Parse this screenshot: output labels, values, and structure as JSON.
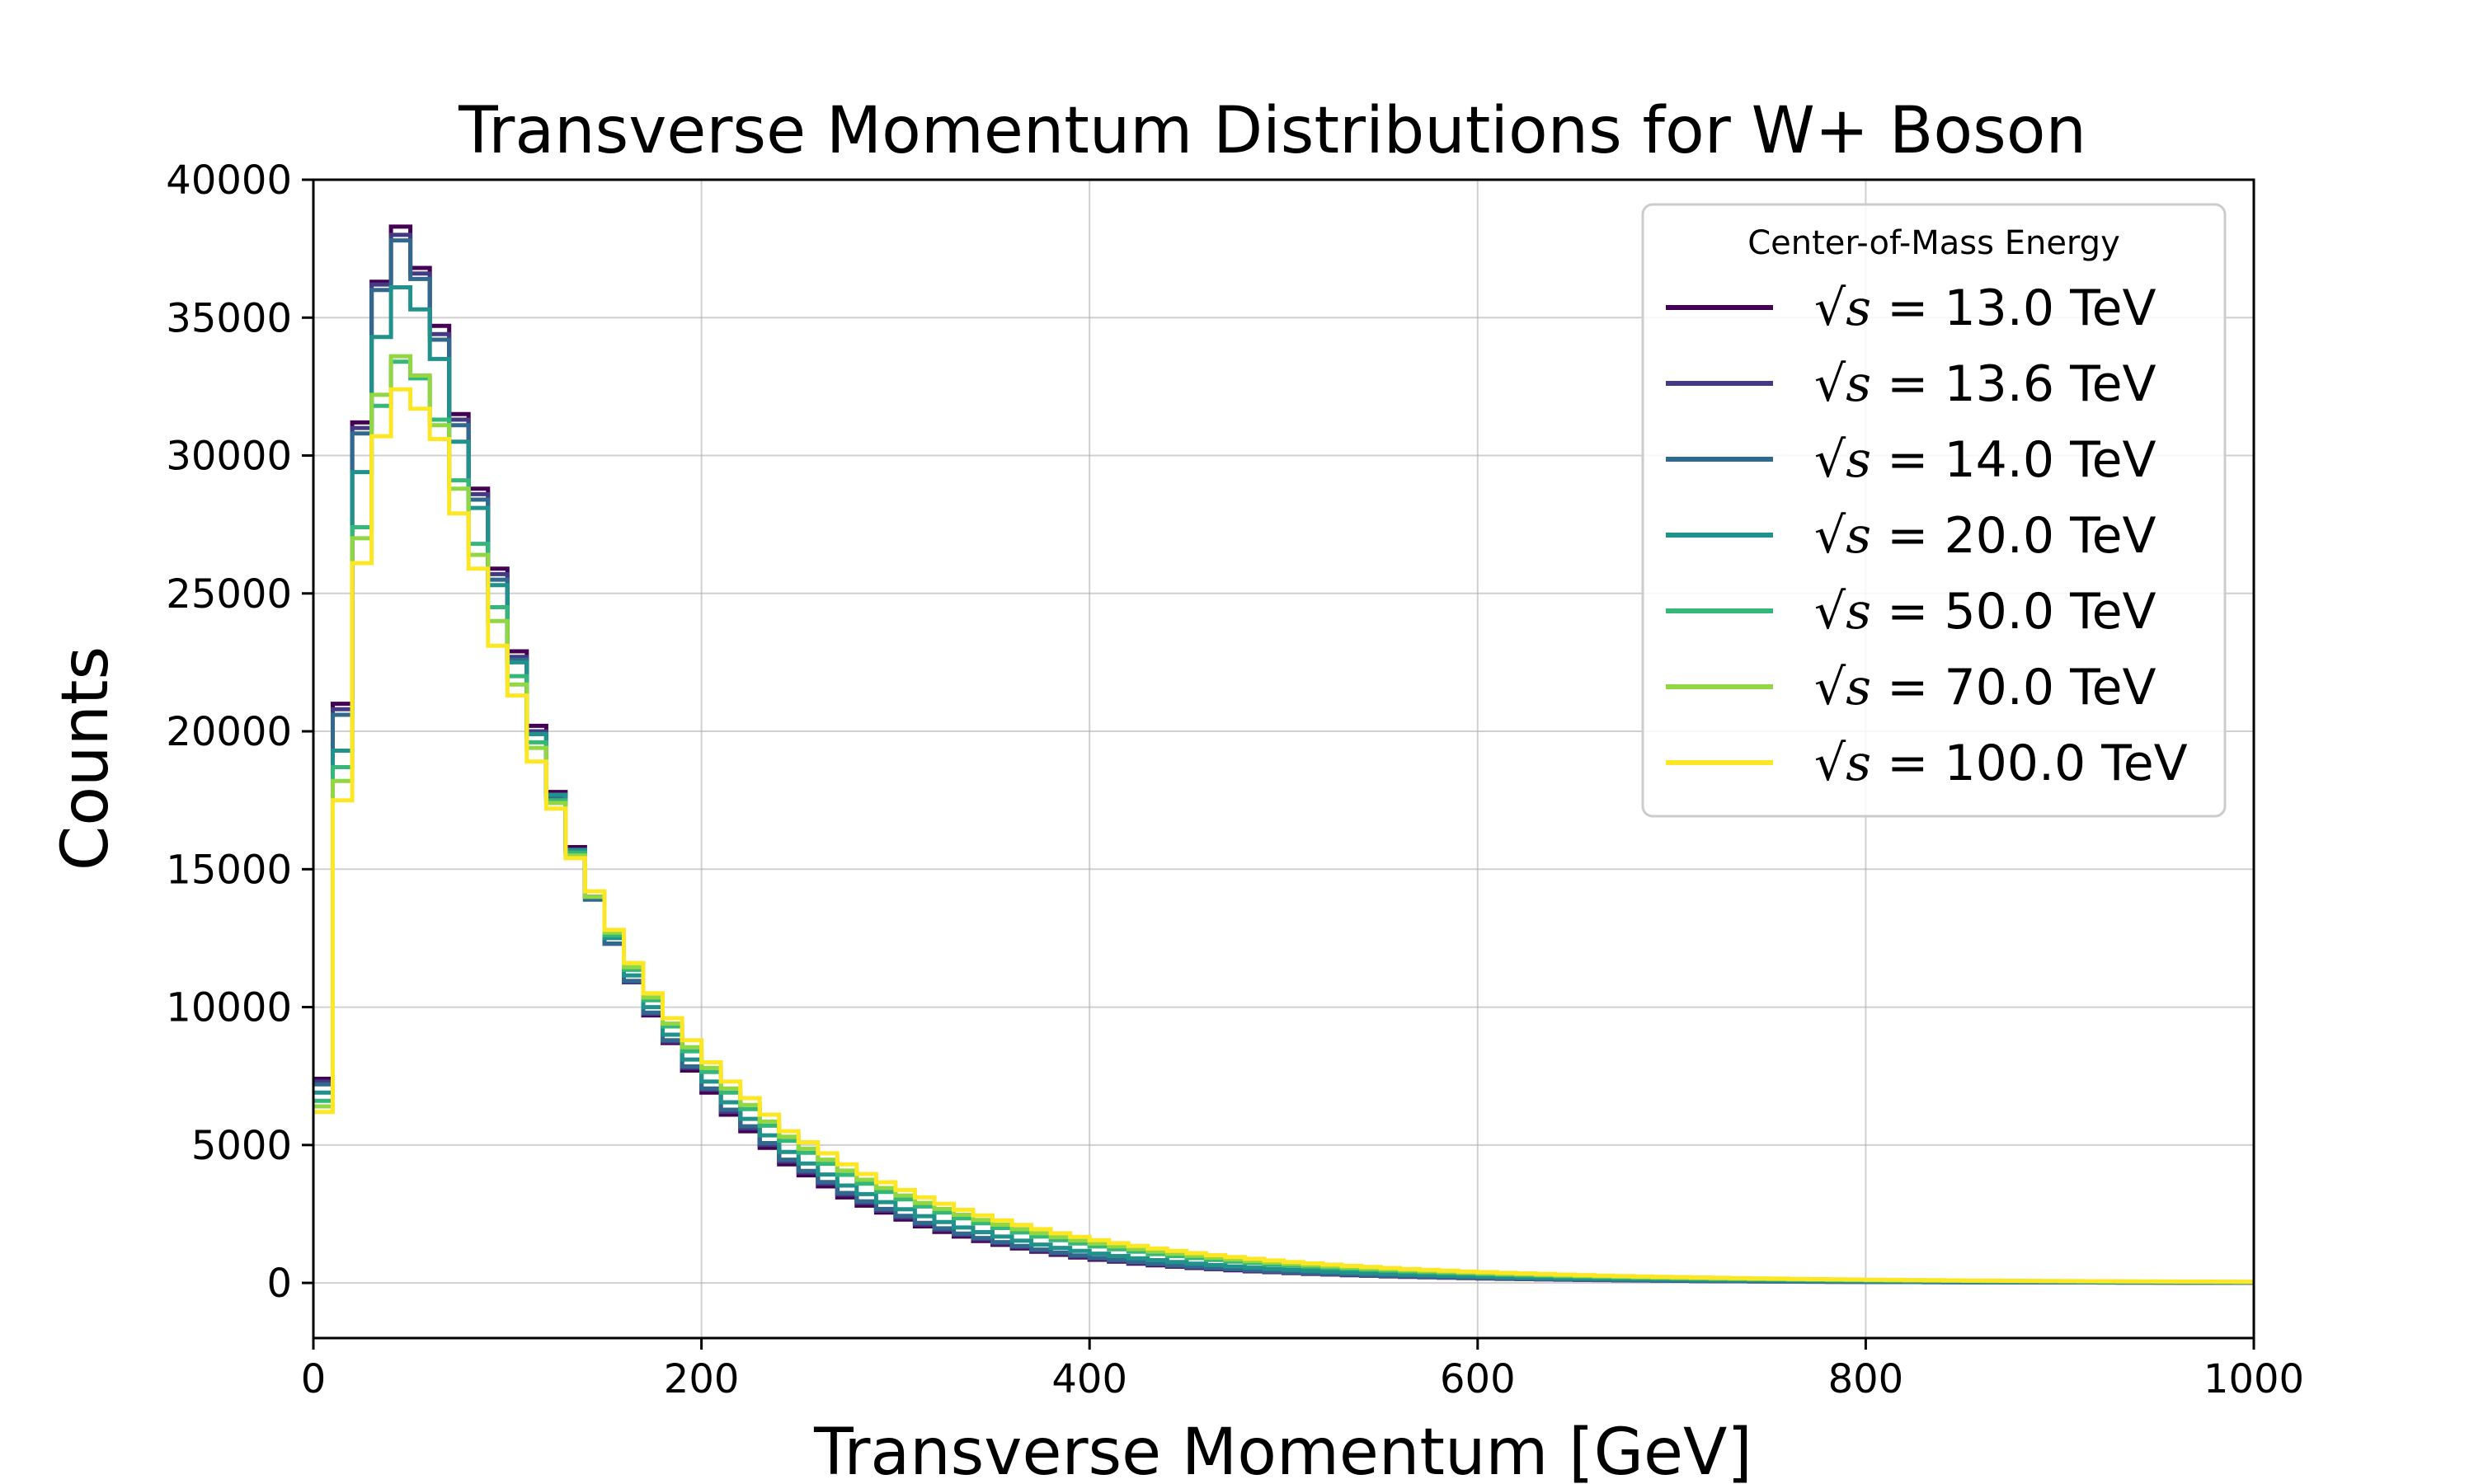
{
  "chart_data": {
    "type": "line",
    "drawstyle": "steps-post",
    "title": "Transverse Momentum Distributions for W+ Boson",
    "xlabel": "Transverse Momentum [GeV]",
    "ylabel": "Counts",
    "xlim": [
      0,
      1000
    ],
    "ylim": [
      -2000,
      40000
    ],
    "xticks": [
      "0",
      "200",
      "400",
      "600",
      "800",
      "1000"
    ],
    "yticks": [
      "0",
      "5000",
      "10000",
      "15000",
      "20000",
      "25000",
      "30000",
      "35000",
      "40000"
    ],
    "grid": true,
    "legend": {
      "title": "Center-of-Mass Energy",
      "placement": "top-right"
    },
    "bin_width": 10,
    "bin_edges_start": 0,
    "series": [
      {
        "name": "13.0",
        "legend_prefix": "√",
        "legend_var": "s",
        "legend_eq": " = ",
        "legend_unit": " TeV",
        "color": "#440154",
        "values": [
          7400,
          21000,
          31200,
          36300,
          38300,
          36800,
          34700,
          31500,
          28800,
          25900,
          22900,
          20200,
          17800,
          15800,
          14000,
          12300,
          10900,
          9700,
          8700,
          7700,
          6900,
          6100,
          5500,
          4900,
          4300,
          3900,
          3500,
          3100,
          2800,
          2550,
          2300,
          2050,
          1850,
          1680,
          1520,
          1380,
          1250,
          1130,
          1020,
          920,
          840,
          770,
          700,
          640,
          590,
          540,
          500,
          460,
          420,
          390,
          360,
          330,
          305,
          280,
          260,
          240,
          220,
          205,
          190,
          175,
          162,
          150,
          139,
          129,
          120,
          111,
          103,
          96,
          89,
          83,
          77,
          72,
          67,
          62,
          58,
          54,
          50,
          46,
          43,
          40,
          37,
          35,
          32,
          30,
          28,
          26,
          24,
          22,
          21,
          19,
          18,
          17,
          16,
          15,
          14,
          13,
          12,
          11,
          10,
          9
        ]
      },
      {
        "name": "13.6",
        "legend_prefix": "√",
        "legend_var": "s",
        "legend_eq": " = ",
        "legend_unit": " TeV",
        "color": "#443983",
        "values": [
          7300,
          20800,
          31000,
          36200,
          38000,
          36600,
          34400,
          31300,
          28600,
          25700,
          22700,
          20000,
          17700,
          15700,
          13900,
          12300,
          10900,
          9750,
          8750,
          7800,
          7000,
          6200,
          5600,
          5000,
          4400,
          4000,
          3600,
          3200,
          2900,
          2620,
          2370,
          2120,
          1920,
          1740,
          1580,
          1430,
          1300,
          1170,
          1060,
          960,
          880,
          800,
          730,
          670,
          615,
          565,
          520,
          480,
          440,
          405,
          375,
          345,
          318,
          293,
          270,
          250,
          230,
          213,
          197,
          182,
          168,
          156,
          145,
          134,
          124,
          115,
          107,
          99,
          92,
          86,
          80,
          74,
          69,
          64,
          60,
          56,
          52,
          48,
          45,
          42,
          39,
          36,
          34,
          31,
          29,
          27,
          25,
          23,
          22,
          20,
          19,
          18,
          17,
          16,
          15,
          14,
          13,
          12,
          11,
          10
        ]
      },
      {
        "name": "14.0",
        "legend_prefix": "√",
        "legend_var": "s",
        "legend_eq": " = ",
        "legend_unit": " TeV",
        "color": "#31688e",
        "values": [
          7200,
          20600,
          30800,
          36000,
          37800,
          36400,
          34200,
          31100,
          28400,
          25500,
          22600,
          19900,
          17600,
          15600,
          13900,
          12300,
          10950,
          9800,
          8800,
          7850,
          7050,
          6280,
          5680,
          5070,
          4470,
          4060,
          3660,
          3260,
          2960,
          2680,
          2430,
          2180,
          1980,
          1790,
          1630,
          1480,
          1340,
          1210,
          1100,
          995,
          910,
          830,
          760,
          695,
          640,
          590,
          540,
          500,
          460,
          425,
          390,
          360,
          332,
          306,
          283,
          262,
          242,
          224,
          207,
          191,
          177,
          164,
          152,
          141,
          131,
          121,
          112,
          104,
          97,
          90,
          84,
          78,
          72,
          67,
          63,
          58,
          54,
          51,
          47,
          44,
          41,
          38,
          35,
          33,
          31,
          29,
          27,
          25,
          23,
          21,
          20,
          19,
          18,
          16,
          15,
          14,
          13,
          12,
          11,
          10
        ]
      },
      {
        "name": "20.0",
        "legend_prefix": "√",
        "legend_var": "s",
        "legend_eq": " = ",
        "legend_unit": " TeV",
        "color": "#21918c",
        "values": [
          6900,
          19300,
          29400,
          34300,
          36100,
          35300,
          33500,
          30500,
          28100,
          25300,
          22500,
          19900,
          17700,
          15700,
          14000,
          12500,
          11150,
          10000,
          9000,
          8100,
          7300,
          6550,
          5950,
          5350,
          4750,
          4330,
          3930,
          3530,
          3220,
          2930,
          2670,
          2420,
          2210,
          2010,
          1840,
          1680,
          1530,
          1390,
          1270,
          1160,
          1060,
          975,
          895,
          825,
          760,
          700,
          645,
          597,
          552,
          511,
          473,
          438,
          406,
          376,
          349,
          324,
          301,
          280,
          260,
          242,
          225,
          209,
          195,
          182,
          170,
          158,
          148,
          138,
          129,
          120,
          112,
          105,
          98,
          92,
          86,
          80,
          75,
          70,
          66,
          62,
          58,
          54,
          51,
          48,
          45,
          42,
          39,
          37,
          35,
          33,
          31,
          29,
          27,
          25,
          24,
          22,
          21,
          20,
          19,
          18
        ]
      },
      {
        "name": "50.0",
        "legend_prefix": "√",
        "legend_var": "s",
        "legend_eq": " = ",
        "legend_unit": " TeV",
        "color": "#35b779",
        "values": [
          6600,
          18700,
          27400,
          31800,
          33400,
          32800,
          31300,
          29100,
          26800,
          24500,
          22000,
          19600,
          17500,
          15600,
          14000,
          12600,
          11350,
          10250,
          9300,
          8400,
          7650,
          6900,
          6300,
          5700,
          5150,
          4720,
          4320,
          3920,
          3600,
          3300,
          3030,
          2770,
          2550,
          2340,
          2160,
          1990,
          1830,
          1680,
          1550,
          1430,
          1320,
          1220,
          1130,
          1045,
          970,
          900,
          835,
          775,
          720,
          670,
          624,
          581,
          541,
          504,
          470,
          438,
          409,
          382,
          357,
          334,
          312,
          292,
          273,
          256,
          240,
          225,
          211,
          198,
          186,
          175,
          164,
          154,
          145,
          136,
          128,
          121,
          114,
          107,
          101,
          95,
          90,
          85,
          80,
          75,
          71,
          67,
          63,
          60,
          56,
          53,
          50,
          48,
          45,
          43,
          40,
          38,
          36,
          34,
          32,
          30
        ]
      },
      {
        "name": "70.0",
        "legend_prefix": "√",
        "legend_var": "s",
        "legend_eq": " = ",
        "legend_unit": " TeV",
        "color": "#90d743",
        "values": [
          6400,
          18200,
          27000,
          32200,
          33600,
          32900,
          31100,
          28800,
          26400,
          24000,
          21700,
          19400,
          17400,
          15500,
          14000,
          12700,
          11450,
          10350,
          9400,
          8550,
          7800,
          7050,
          6450,
          5850,
          5300,
          4870,
          4470,
          4070,
          3740,
          3440,
          3170,
          2900,
          2680,
          2470,
          2280,
          2110,
          1950,
          1800,
          1660,
          1540,
          1425,
          1320,
          1225,
          1135,
          1055,
          980,
          912,
          848,
          790,
          736,
          686,
          640,
          597,
          557,
          520,
          486,
          454,
          425,
          398,
          373,
          349,
          327,
          307,
          288,
          270,
          253,
          238,
          224,
          210,
          198,
          186,
          175,
          165,
          155,
          146,
          138,
          130,
          123,
          116,
          109,
          103,
          97,
          92,
          87,
          82,
          78,
          73,
          69,
          66,
          62,
          59,
          56,
          53,
          50,
          47,
          45,
          42,
          40,
          38,
          36
        ]
      },
      {
        "name": "100.0",
        "legend_prefix": "√",
        "legend_var": "s",
        "legend_eq": " = ",
        "legend_unit": " TeV",
        "color": "#fde725",
        "values": [
          6200,
          17500,
          26100,
          30700,
          32400,
          31700,
          30600,
          27900,
          25900,
          23100,
          21300,
          18900,
          17200,
          15400,
          14200,
          12800,
          11600,
          10500,
          9600,
          8800,
          8000,
          7300,
          6700,
          6100,
          5500,
          5100,
          4700,
          4300,
          3950,
          3650,
          3370,
          3100,
          2870,
          2650,
          2450,
          2270,
          2100,
          1950,
          1800,
          1670,
          1550,
          1440,
          1340,
          1245,
          1160,
          1080,
          1005,
          937,
          873,
          814,
          760,
          709,
          662,
          619,
          578,
          541,
          506,
          474,
          444,
          416,
          390,
          366,
          343,
          322,
          302,
          284,
          267,
          251,
          236,
          222,
          209,
          197,
          185,
          175,
          165,
          155,
          147,
          138,
          130,
          123,
          116,
          110,
          104,
          98,
          93,
          88,
          83,
          79,
          75,
          71,
          67,
          64,
          60,
          57,
          54,
          52,
          49,
          47,
          44,
          42
        ]
      }
    ]
  }
}
